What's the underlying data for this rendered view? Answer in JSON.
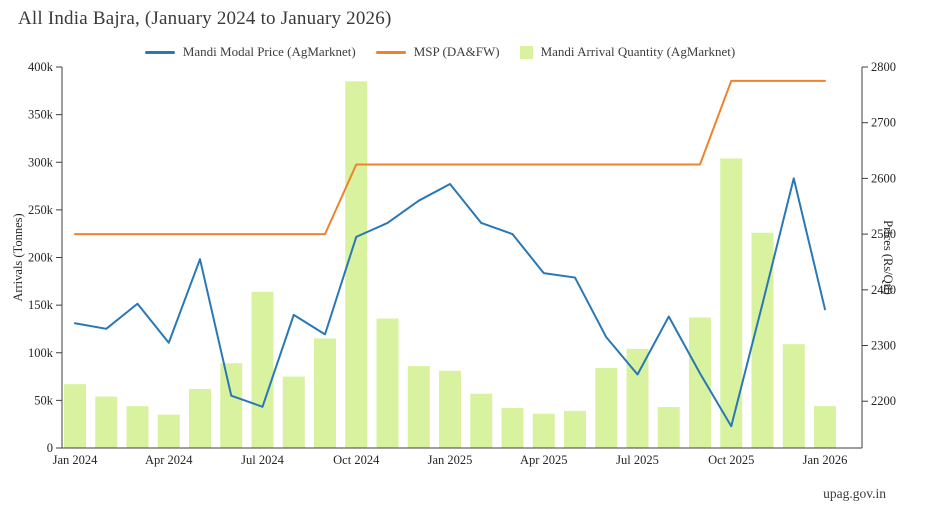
{
  "title": "All India Bajra, (January 2024 to January 2026)",
  "watermark": "upag.gov.in",
  "legend": [
    {
      "label": "Mandi Modal Price (AgMarknet)",
      "swatch": "line",
      "color": "#2978b5"
    },
    {
      "label": "MSP (DA&FW)",
      "swatch": "line",
      "color": "#ef822d"
    },
    {
      "label": "Mandi Arrival Quantity (AgMarknet)",
      "swatch": "square",
      "color": "#d9f2a0"
    }
  ],
  "chart_data": {
    "type": "bar+line combo, dual axis",
    "title": "All India Bajra, (January 2024 to January 2026)",
    "x": [
      "Jan 2024",
      "Feb 2024",
      "Mar 2024",
      "Apr 2024",
      "May 2024",
      "Jun 2024",
      "Jul 2024",
      "Aug 2024",
      "Sep 2024",
      "Oct 2024",
      "Nov 2024",
      "Dec 2024",
      "Jan 2025",
      "Feb 2025",
      "Mar 2025",
      "Apr 2025",
      "May 2025",
      "Jun 2025",
      "Jul 2025",
      "Aug 2025",
      "Sep 2025",
      "Oct 2025",
      "Nov 2025",
      "Dec 2025",
      "Jan 2026"
    ],
    "series": [
      {
        "name": "Mandi Arrival Quantity (AgMarknet)",
        "type": "bar",
        "axis": "left",
        "color": "#d9f2a0",
        "values": [
          67000,
          54000,
          44000,
          35000,
          62000,
          89000,
          164000,
          75000,
          115000,
          385000,
          136000,
          86000,
          81000,
          57000,
          42000,
          36000,
          39000,
          84000,
          104000,
          43000,
          137000,
          304000,
          226000,
          109000,
          44000
        ]
      },
      {
        "name": "Mandi Modal Price (AgMarknet)",
        "type": "line",
        "axis": "right",
        "color": "#2978b5",
        "values": [
          2340,
          2330,
          2375,
          2305,
          2455,
          2210,
          2190,
          2355,
          2320,
          2495,
          2520,
          2560,
          2590,
          2520,
          2500,
          2430,
          2422,
          2315,
          2248,
          2352,
          2250,
          2155,
          2375,
          2600,
          2365
        ]
      },
      {
        "name": "MSP (DA&FW)",
        "type": "line",
        "axis": "right",
        "color": "#ef822d",
        "values": [
          2500,
          2500,
          2500,
          2500,
          2500,
          2500,
          2500,
          2500,
          2500,
          2625,
          2625,
          2625,
          2625,
          2625,
          2625,
          2625,
          2625,
          2625,
          2625,
          2625,
          2625,
          2775,
          2775,
          2775,
          2775
        ]
      }
    ],
    "left_axis": {
      "label": "Arrivals (Tonnes)",
      "tick_values": [
        0,
        50000,
        100000,
        150000,
        200000,
        250000,
        300000,
        350000,
        400000
      ],
      "tick_labels": [
        "0",
        "50k",
        "100k",
        "150k",
        "200k",
        "250k",
        "300k",
        "350k",
        "400k"
      ],
      "range": [
        0,
        400000
      ]
    },
    "right_axis": {
      "label": "Prices (Rs/Qtl)",
      "tick_values": [
        2200,
        2300,
        2400,
        2500,
        2600,
        2700,
        2800
      ],
      "range": [
        2116,
        2800
      ]
    },
    "x_axis": {
      "tick_labels": [
        "Jan 2024",
        "Apr 2024",
        "Jul 2024",
        "Oct 2024",
        "Jan 2025",
        "Apr 2025",
        "Jul 2025",
        "Oct 2025",
        "Jan 2026"
      ],
      "tick_indices": [
        0,
        3,
        6,
        9,
        12,
        15,
        18,
        21,
        24
      ]
    },
    "grid": false,
    "legend_position": "top-center"
  }
}
